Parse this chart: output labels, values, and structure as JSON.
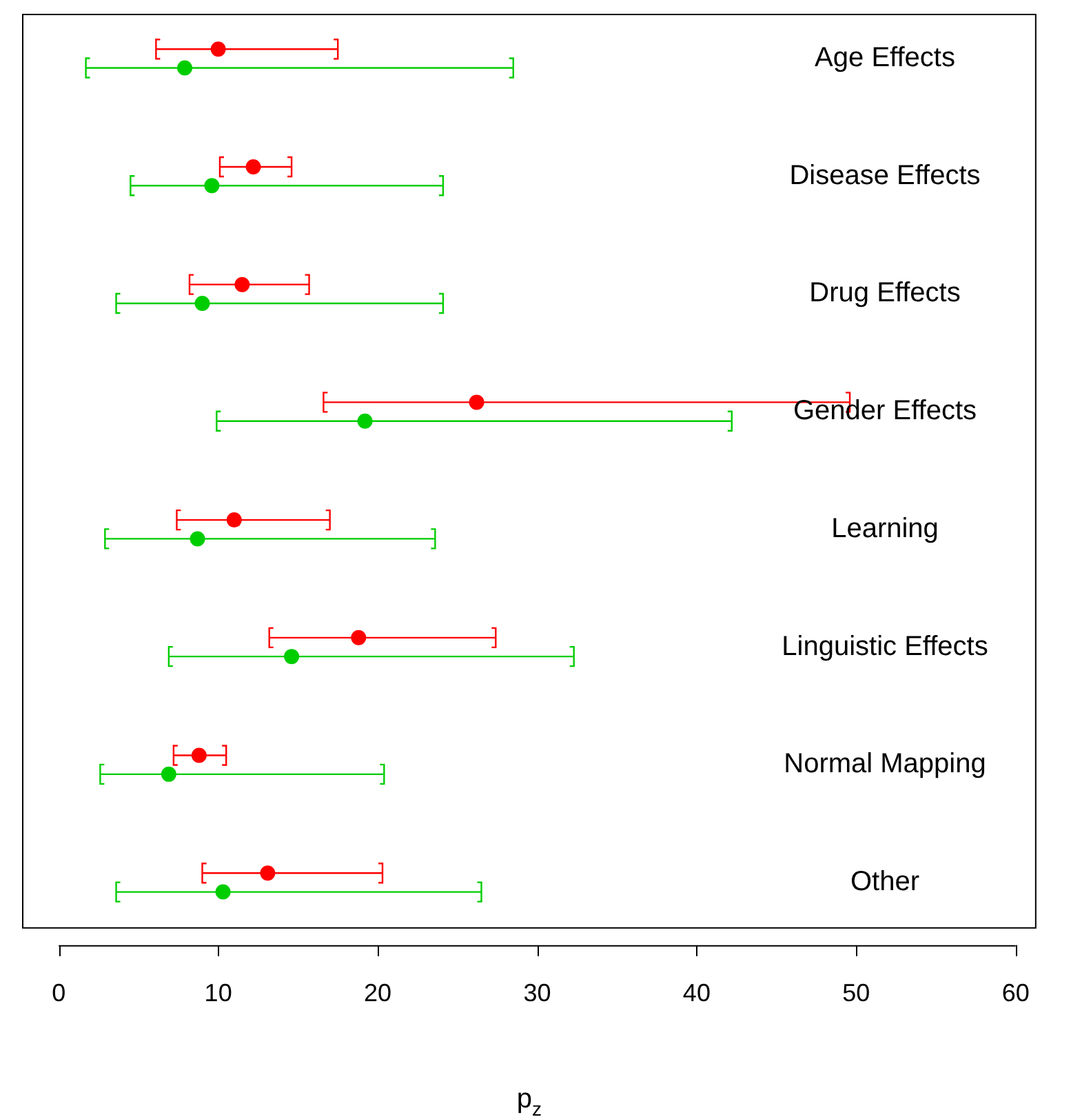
{
  "chart_data": {
    "type": "scatter",
    "orientation": "horizontal",
    "xlabel": "p$_{z}$",
    "marker": "circle",
    "categories": [
      "Age Effects",
      "Disease Effects",
      "Drug Effects",
      "Gender Effects",
      "Learning",
      "Linguistic Effects",
      "Normal Mapping",
      "Other"
    ],
    "series": [
      {
        "color": "#ff0000",
        "values": [
          10.0,
          12.2,
          11.5,
          26.2,
          11.0,
          18.8,
          8.8,
          13.1
        ],
        "errors": [
          [
            6.1,
            17.5
          ],
          [
            10.1,
            14.6
          ],
          [
            8.2,
            15.7
          ],
          [
            16.6,
            49.6
          ],
          [
            7.4,
            17.0
          ],
          [
            13.2,
            27.4
          ],
          [
            7.2,
            10.5
          ],
          [
            9.0,
            20.3
          ]
        ]
      },
      {
        "color": "#00cd00",
        "values": [
          7.9,
          9.6,
          9.0,
          19.2,
          8.7,
          14.6,
          6.9,
          10.3
        ],
        "errors": [
          [
            1.7,
            28.5
          ],
          [
            4.5,
            24.1
          ],
          [
            3.6,
            24.1
          ],
          [
            9.9,
            42.2
          ],
          [
            2.9,
            23.6
          ],
          [
            6.9,
            32.3
          ],
          [
            2.6,
            20.4
          ],
          [
            3.6,
            26.5
          ]
        ]
      }
    ],
    "xlim": [
      -2.3,
      61.3
    ],
    "xticks": [
      0,
      10,
      20,
      30,
      40,
      50,
      60
    ]
  }
}
